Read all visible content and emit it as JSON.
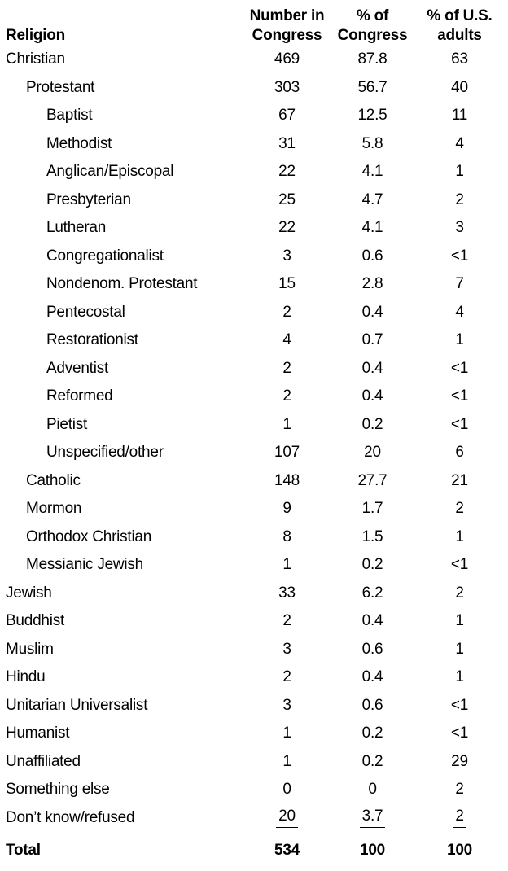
{
  "header": {
    "religion": "Religion",
    "number_line1": "Number in",
    "number_line2": "Congress",
    "pct_congress_line1": "% of",
    "pct_congress_line2": "Congress",
    "pct_us_line1": "% of U.S.",
    "pct_us_line2": "adults"
  },
  "colors": {
    "text": "#000000",
    "background": "#ffffff"
  },
  "chart_data": {
    "type": "table",
    "columns": [
      "Religion",
      "Number in Congress",
      "% of Congress",
      "% of U.S. adults"
    ],
    "rows": [
      {
        "religion": "Christian",
        "indent": 0,
        "number_in_congress": "469",
        "pct_of_congress": "87.8",
        "pct_of_us_adults": "63"
      },
      {
        "religion": "Protestant",
        "indent": 1,
        "number_in_congress": "303",
        "pct_of_congress": "56.7",
        "pct_of_us_adults": "40"
      },
      {
        "religion": "Baptist",
        "indent": 2,
        "number_in_congress": "67",
        "pct_of_congress": "12.5",
        "pct_of_us_adults": "11"
      },
      {
        "religion": "Methodist",
        "indent": 2,
        "number_in_congress": "31",
        "pct_of_congress": "5.8",
        "pct_of_us_adults": "4"
      },
      {
        "religion": "Anglican/Episcopal",
        "indent": 2,
        "number_in_congress": "22",
        "pct_of_congress": "4.1",
        "pct_of_us_adults": "1"
      },
      {
        "religion": "Presbyterian",
        "indent": 2,
        "number_in_congress": "25",
        "pct_of_congress": "4.7",
        "pct_of_us_adults": "2"
      },
      {
        "religion": "Lutheran",
        "indent": 2,
        "number_in_congress": "22",
        "pct_of_congress": "4.1",
        "pct_of_us_adults": "3"
      },
      {
        "religion": "Congregationalist",
        "indent": 2,
        "number_in_congress": "3",
        "pct_of_congress": "0.6",
        "pct_of_us_adults": "<1"
      },
      {
        "religion": "Nondenom. Protestant",
        "indent": 2,
        "number_in_congress": "15",
        "pct_of_congress": "2.8",
        "pct_of_us_adults": "7"
      },
      {
        "religion": "Pentecostal",
        "indent": 2,
        "number_in_congress": "2",
        "pct_of_congress": "0.4",
        "pct_of_us_adults": "4"
      },
      {
        "religion": "Restorationist",
        "indent": 2,
        "number_in_congress": "4",
        "pct_of_congress": "0.7",
        "pct_of_us_adults": "1"
      },
      {
        "religion": "Adventist",
        "indent": 2,
        "number_in_congress": "2",
        "pct_of_congress": "0.4",
        "pct_of_us_adults": "<1"
      },
      {
        "religion": "Reformed",
        "indent": 2,
        "number_in_congress": "2",
        "pct_of_congress": "0.4",
        "pct_of_us_adults": "<1"
      },
      {
        "religion": "Pietist",
        "indent": 2,
        "number_in_congress": "1",
        "pct_of_congress": "0.2",
        "pct_of_us_adults": "<1"
      },
      {
        "religion": "Unspecified/other",
        "indent": 2,
        "number_in_congress": "107",
        "pct_of_congress": "20",
        "pct_of_us_adults": "6"
      },
      {
        "religion": "Catholic",
        "indent": 1,
        "number_in_congress": "148",
        "pct_of_congress": "27.7",
        "pct_of_us_adults": "21"
      },
      {
        "religion": "Mormon",
        "indent": 1,
        "number_in_congress": "9",
        "pct_of_congress": "1.7",
        "pct_of_us_adults": "2"
      },
      {
        "religion": "Orthodox Christian",
        "indent": 1,
        "number_in_congress": "8",
        "pct_of_congress": "1.5",
        "pct_of_us_adults": "1"
      },
      {
        "religion": "Messianic Jewish",
        "indent": 1,
        "number_in_congress": "1",
        "pct_of_congress": "0.2",
        "pct_of_us_adults": "<1"
      },
      {
        "religion": "Jewish",
        "indent": 0,
        "number_in_congress": "33",
        "pct_of_congress": "6.2",
        "pct_of_us_adults": "2"
      },
      {
        "religion": "Buddhist",
        "indent": 0,
        "number_in_congress": "2",
        "pct_of_congress": "0.4",
        "pct_of_us_adults": "1"
      },
      {
        "religion": "Muslim",
        "indent": 0,
        "number_in_congress": "3",
        "pct_of_congress": "0.6",
        "pct_of_us_adults": "1"
      },
      {
        "religion": "Hindu",
        "indent": 0,
        "number_in_congress": "2",
        "pct_of_congress": "0.4",
        "pct_of_us_adults": "1"
      },
      {
        "religion": "Unitarian Universalist",
        "indent": 0,
        "number_in_congress": "3",
        "pct_of_congress": "0.6",
        "pct_of_us_adults": "<1"
      },
      {
        "religion": "Humanist",
        "indent": 0,
        "number_in_congress": "1",
        "pct_of_congress": "0.2",
        "pct_of_us_adults": "<1"
      },
      {
        "religion": "Unaffiliated",
        "indent": 0,
        "number_in_congress": "1",
        "pct_of_congress": "0.2",
        "pct_of_us_adults": "29"
      },
      {
        "religion": "Something else",
        "indent": 0,
        "number_in_congress": "0",
        "pct_of_congress": "0",
        "pct_of_us_adults": "2"
      },
      {
        "religion": "Don’t know/refused",
        "indent": 0,
        "number_in_congress": "20",
        "pct_of_congress": "3.7",
        "pct_of_us_adults": "2",
        "underline": true
      },
      {
        "religion": "Total",
        "indent": 0,
        "number_in_congress": "534",
        "pct_of_congress": "100",
        "pct_of_us_adults": "100",
        "bold": true
      }
    ]
  }
}
